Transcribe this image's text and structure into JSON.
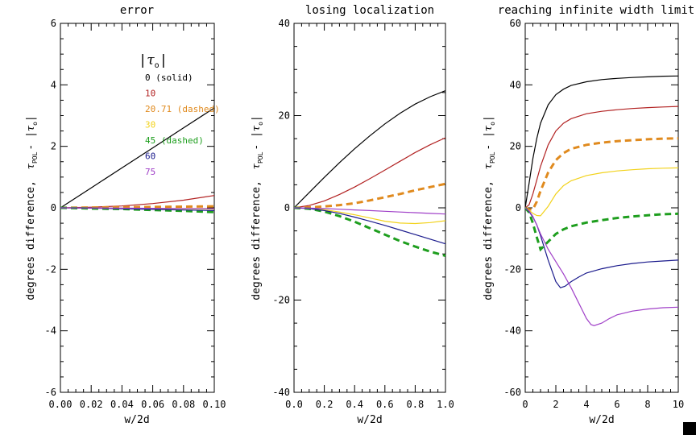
{
  "chart_data": [
    {
      "type": "line",
      "title": "error",
      "xlabel": "w/2d",
      "ylabel": "degrees difference,",
      "ylabel_math": "τ",
      "ylabel_sub": "POL",
      "ylabel_tail": "- |",
      "ylabel_sub2": "o",
      "ylabel_end": "|",
      "xlim": [
        0.0,
        0.1
      ],
      "ylim": [
        -6,
        6
      ],
      "xticks": [
        0.0,
        0.02,
        0.04,
        0.06,
        0.08,
        0.1
      ],
      "xtick_labels": [
        "0.00",
        "0.02",
        "0.04",
        "0.06",
        "0.08",
        "0.10"
      ],
      "yticks": [
        -6,
        -4,
        -2,
        0,
        2,
        4,
        6
      ],
      "ytick_labels": [
        "-6",
        "-4",
        "-2",
        "0",
        "2",
        "4",
        "6"
      ],
      "legend": {
        "title_pre": "|",
        "title_tau": "τ",
        "title_sub": "o",
        "title_post": "|",
        "entries": [
          "0 (solid)",
          "10",
          "20.71 (dashed)",
          "30",
          "45 (dashed)",
          "60",
          "75"
        ],
        "colors": [
          "#000000",
          "#b22222",
          "#e08a1e",
          "#f2d21b",
          "#1e9e1e",
          "#1a1a8c",
          "#a040c8"
        ]
      },
      "series": [
        {
          "name": "0",
          "color": "#000000",
          "dash": false,
          "x": [
            0,
            0.02,
            0.04,
            0.06,
            0.08,
            0.1
          ],
          "y": [
            0,
            0.65,
            1.3,
            1.95,
            2.6,
            3.25
          ]
        },
        {
          "name": "10",
          "color": "#b22222",
          "dash": false,
          "x": [
            0,
            0.02,
            0.04,
            0.06,
            0.08,
            0.1
          ],
          "y": [
            0,
            0.02,
            0.06,
            0.14,
            0.25,
            0.4
          ]
        },
        {
          "name": "20.71",
          "color": "#e08a1e",
          "dash": true,
          "x": [
            0,
            0.02,
            0.04,
            0.06,
            0.08,
            0.1
          ],
          "y": [
            0,
            0.01,
            0.02,
            0.03,
            0.04,
            0.05
          ]
        },
        {
          "name": "30",
          "color": "#f2d21b",
          "dash": false,
          "x": [
            0,
            0.02,
            0.04,
            0.06,
            0.08,
            0.1
          ],
          "y": [
            0,
            -0.005,
            -0.01,
            -0.02,
            -0.03,
            -0.04
          ]
        },
        {
          "name": "45",
          "color": "#1e9e1e",
          "dash": true,
          "x": [
            0,
            0.02,
            0.04,
            0.06,
            0.08,
            0.1
          ],
          "y": [
            0,
            -0.02,
            -0.04,
            -0.07,
            -0.1,
            -0.14
          ]
        },
        {
          "name": "60",
          "color": "#1a1a8c",
          "dash": false,
          "x": [
            0,
            0.02,
            0.04,
            0.06,
            0.08,
            0.1
          ],
          "y": [
            0,
            -0.01,
            -0.03,
            -0.05,
            -0.07,
            -0.09
          ]
        },
        {
          "name": "75",
          "color": "#a040c8",
          "dash": false,
          "x": [
            0,
            0.02,
            0.04,
            0.06,
            0.08,
            0.1
          ],
          "y": [
            0,
            -0.005,
            -0.01,
            -0.015,
            -0.02,
            -0.025
          ]
        }
      ]
    },
    {
      "type": "line",
      "title": "losing localization",
      "xlabel": "w/2d",
      "ylabel": "degrees difference,",
      "ylabel_math": "τ",
      "ylabel_sub": "POL",
      "ylabel_tail": "- |",
      "ylabel_sub2": "o",
      "ylabel_end": "|",
      "xlim": [
        0.0,
        1.0
      ],
      "ylim": [
        -40,
        40
      ],
      "xticks": [
        0.0,
        0.2,
        0.4,
        0.6,
        0.8,
        1.0
      ],
      "xtick_labels": [
        "0.0",
        "0.2",
        "0.4",
        "0.6",
        "0.8",
        "1.0"
      ],
      "yticks": [
        -40,
        -20,
        0,
        20,
        40
      ],
      "ytick_labels": [
        "-40",
        "-20",
        "0",
        "20",
        "40"
      ],
      "series": [
        {
          "name": "0",
          "color": "#000000",
          "dash": false,
          "x": [
            0,
            0.1,
            0.2,
            0.3,
            0.4,
            0.5,
            0.6,
            0.7,
            0.8,
            0.9,
            1.0
          ],
          "y": [
            0,
            3.3,
            6.6,
            9.8,
            12.8,
            15.6,
            18.2,
            20.5,
            22.5,
            24.1,
            25.4
          ]
        },
        {
          "name": "10",
          "color": "#b22222",
          "dash": false,
          "x": [
            0,
            0.1,
            0.2,
            0.3,
            0.4,
            0.5,
            0.6,
            0.7,
            0.8,
            0.9,
            1.0
          ],
          "y": [
            0,
            0.5,
            1.5,
            2.9,
            4.5,
            6.3,
            8.2,
            10.1,
            12.0,
            13.7,
            15.2
          ]
        },
        {
          "name": "20.71",
          "color": "#e08a1e",
          "dash": true,
          "x": [
            0,
            0.1,
            0.2,
            0.3,
            0.4,
            0.5,
            0.6,
            0.7,
            0.8,
            0.9,
            1.0
          ],
          "y": [
            0,
            0.1,
            0.3,
            0.6,
            1.0,
            1.6,
            2.3,
            3.0,
            3.8,
            4.5,
            5.2
          ]
        },
        {
          "name": "30",
          "color": "#f2d21b",
          "dash": false,
          "x": [
            0,
            0.1,
            0.2,
            0.3,
            0.4,
            0.5,
            0.6,
            0.7,
            0.8,
            0.9,
            1.0
          ],
          "y": [
            0,
            -0.1,
            -0.4,
            -0.9,
            -1.5,
            -2.2,
            -2.9,
            -3.3,
            -3.4,
            -3.2,
            -2.8
          ]
        },
        {
          "name": "45",
          "color": "#1e9e1e",
          "dash": true,
          "x": [
            0,
            0.1,
            0.2,
            0.3,
            0.4,
            0.5,
            0.6,
            0.7,
            0.8,
            0.9,
            1.0
          ],
          "y": [
            0,
            -0.2,
            -0.8,
            -1.8,
            -3.0,
            -4.4,
            -5.8,
            -7.2,
            -8.4,
            -9.5,
            -10.4
          ]
        },
        {
          "name": "60",
          "color": "#1a1a8c",
          "dash": false,
          "x": [
            0,
            0.1,
            0.2,
            0.3,
            0.4,
            0.5,
            0.6,
            0.7,
            0.8,
            0.9,
            1.0
          ],
          "y": [
            0,
            -0.15,
            -0.6,
            -1.2,
            -2.0,
            -2.9,
            -3.8,
            -4.8,
            -5.8,
            -6.8,
            -7.8
          ]
        },
        {
          "name": "75",
          "color": "#a040c8",
          "dash": false,
          "x": [
            0,
            0.1,
            0.2,
            0.3,
            0.4,
            0.5,
            0.6,
            0.7,
            0.8,
            0.9,
            1.0
          ],
          "y": [
            0,
            -0.05,
            -0.15,
            -0.3,
            -0.45,
            -0.6,
            -0.75,
            -0.9,
            -1.05,
            -1.2,
            -1.35
          ]
        }
      ]
    },
    {
      "type": "line",
      "title": "reaching infinite width limit",
      "xlabel": "w/2d",
      "ylabel": "degrees difference,",
      "ylabel_math": "τ",
      "ylabel_sub": "POL",
      "ylabel_tail": "- |",
      "ylabel_sub2": "o",
      "ylabel_end": "|",
      "xlim": [
        0,
        10
      ],
      "ylim": [
        -60,
        60
      ],
      "xticks": [
        0,
        2,
        4,
        6,
        8,
        10
      ],
      "xtick_labels": [
        "0",
        "2",
        "4",
        "6",
        "8",
        "10"
      ],
      "yticks": [
        -60,
        -40,
        -20,
        0,
        20,
        40,
        60
      ],
      "ytick_labels": [
        "-60",
        "-40",
        "-20",
        "0",
        "20",
        "40",
        "60"
      ],
      "series": [
        {
          "name": "0",
          "color": "#000000",
          "dash": false,
          "x": [
            0,
            0.25,
            0.5,
            0.75,
            1,
            1.5,
            2,
            2.5,
            3,
            4,
            5,
            6,
            7,
            8,
            9,
            10
          ],
          "y": [
            0,
            8,
            16,
            22.5,
            27.5,
            33.5,
            36.8,
            38.6,
            39.8,
            41,
            41.7,
            42.1,
            42.4,
            42.6,
            42.8,
            42.9
          ]
        },
        {
          "name": "10",
          "color": "#b22222",
          "dash": false,
          "x": [
            0,
            0.25,
            0.5,
            0.75,
            1,
            1.5,
            2,
            2.5,
            3,
            4,
            5,
            6,
            7,
            8,
            9,
            10
          ],
          "y": [
            0,
            1,
            4.5,
            9,
            13.5,
            20.5,
            25,
            27.5,
            29,
            30.6,
            31.4,
            31.9,
            32.3,
            32.6,
            32.8,
            33
          ]
        },
        {
          "name": "20.71",
          "color": "#e08a1e",
          "dash": true,
          "x": [
            0,
            0.25,
            0.5,
            0.75,
            1,
            1.5,
            2,
            2.5,
            3,
            4,
            5,
            6,
            7,
            8,
            9,
            10
          ],
          "y": [
            0,
            -0.5,
            -0.5,
            2,
            5.5,
            11.5,
            15.5,
            17.8,
            19.2,
            20.5,
            21.2,
            21.7,
            22,
            22.3,
            22.5,
            22.6
          ]
        },
        {
          "name": "30",
          "color": "#f2d21b",
          "dash": false,
          "x": [
            0,
            0.25,
            0.5,
            0.75,
            1,
            1.5,
            2,
            2.5,
            3,
            4,
            5,
            6,
            7,
            8,
            9,
            10
          ],
          "y": [
            0,
            -0.8,
            -1.8,
            -2.5,
            -2.6,
            0.5,
            4.5,
            7.2,
            8.8,
            10.5,
            11.4,
            12,
            12.4,
            12.7,
            12.9,
            13
          ]
        },
        {
          "name": "45",
          "color": "#1e9e1e",
          "dash": true,
          "x": [
            0,
            0.25,
            0.5,
            0.75,
            1,
            1.5,
            2,
            2.5,
            3,
            4,
            5,
            6,
            7,
            8,
            9,
            10
          ],
          "y": [
            0,
            -1.5,
            -5,
            -9.5,
            -13.5,
            -11,
            -8.5,
            -7,
            -6,
            -4.8,
            -4,
            -3.3,
            -2.8,
            -2.4,
            -2.1,
            -1.9
          ]
        },
        {
          "name": "60",
          "color": "#1a1a8c",
          "dash": false,
          "x": [
            0,
            0.25,
            0.5,
            0.75,
            1,
            1.5,
            2,
            2.3,
            2.6,
            3,
            3.5,
            4,
            5,
            6,
            7,
            8,
            9,
            10
          ],
          "y": [
            0,
            -1.2,
            -3,
            -5.5,
            -9,
            -17,
            -24,
            -26,
            -25.5,
            -24,
            -22.5,
            -21.2,
            -19.8,
            -18.8,
            -18.1,
            -17.6,
            -17.3,
            -17
          ]
        },
        {
          "name": "75",
          "color": "#a040c8",
          "dash": false,
          "x": [
            0,
            0.25,
            0.5,
            0.75,
            1,
            1.5,
            2,
            2.5,
            3,
            3.5,
            4,
            4.3,
            4.5,
            5,
            5.5,
            6,
            7,
            8,
            9,
            10
          ],
          "y": [
            0,
            -1,
            -2.8,
            -5.5,
            -8.5,
            -13.5,
            -17.5,
            -21.5,
            -26,
            -31,
            -36,
            -38,
            -38.3,
            -37.5,
            -36,
            -34.8,
            -33.6,
            -32.9,
            -32.5,
            -32.3
          ]
        }
      ]
    }
  ]
}
